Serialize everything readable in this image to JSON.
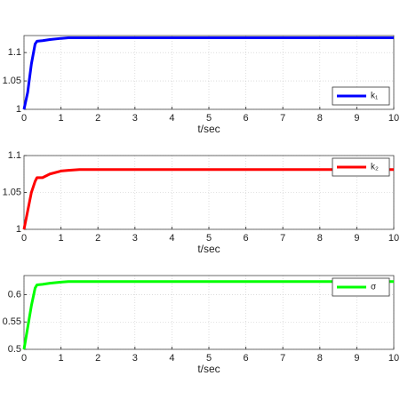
{
  "chart_data": [
    {
      "type": "line",
      "xlabel": "t/sec",
      "x": [
        0,
        0.1,
        0.2,
        0.3,
        0.35,
        0.5,
        0.7,
        1,
        1.2,
        1.5,
        2,
        3,
        4,
        5,
        6,
        7,
        8,
        9,
        10
      ],
      "series": [
        {
          "name": "k₁",
          "color": "#0000ff",
          "values": [
            1,
            1.03,
            1.08,
            1.115,
            1.12,
            1.121,
            1.123,
            1.125,
            1.126,
            1.126,
            1.126,
            1.126,
            1.126,
            1.126,
            1.126,
            1.126,
            1.126,
            1.126,
            1.126
          ]
        }
      ],
      "xlim": [
        0,
        10
      ],
      "xticks": [
        0,
        1,
        2,
        3,
        4,
        5,
        6,
        7,
        8,
        9,
        10
      ],
      "ylim": [
        1,
        1.13
      ],
      "yticks": [
        1,
        1.05,
        1.1
      ],
      "grid": true,
      "legend": "lower right"
    },
    {
      "type": "line",
      "xlabel": "t/sec",
      "x": [
        0,
        0.1,
        0.2,
        0.3,
        0.35,
        0.5,
        0.7,
        1,
        1.2,
        1.5,
        2,
        3,
        4,
        5,
        6,
        7,
        8,
        9,
        10
      ],
      "series": [
        {
          "name": "k₂",
          "color": "#ff0000",
          "values": [
            1,
            1.025,
            1.05,
            1.065,
            1.07,
            1.07,
            1.075,
            1.079,
            1.08,
            1.081,
            1.081,
            1.081,
            1.081,
            1.081,
            1.081,
            1.081,
            1.081,
            1.081,
            1.081
          ]
        }
      ],
      "xlim": [
        0,
        10
      ],
      "xticks": [
        0,
        1,
        2,
        3,
        4,
        5,
        6,
        7,
        8,
        9,
        10
      ],
      "ylim": [
        1,
        1.1
      ],
      "yticks": [
        1,
        1.05,
        1.1
      ],
      "grid": true,
      "legend": "upper right"
    },
    {
      "type": "line",
      "xlabel": "t/sec",
      "x": [
        0,
        0.1,
        0.2,
        0.3,
        0.35,
        0.5,
        0.7,
        1,
        1.2,
        1.5,
        2,
        3,
        4,
        5,
        6,
        7,
        8,
        9,
        10
      ],
      "series": [
        {
          "name": "σ",
          "color": "#00ff00",
          "values": [
            0.5,
            0.54,
            0.58,
            0.612,
            0.618,
            0.619,
            0.621,
            0.623,
            0.624,
            0.624,
            0.624,
            0.624,
            0.624,
            0.624,
            0.624,
            0.624,
            0.624,
            0.624,
            0.624
          ]
        }
      ],
      "xlim": [
        0,
        10
      ],
      "xticks": [
        0,
        1,
        2,
        3,
        4,
        5,
        6,
        7,
        8,
        9,
        10
      ],
      "ylim": [
        0.5,
        0.635
      ],
      "yticks": [
        0.5,
        0.55,
        0.6
      ],
      "grid": true,
      "legend": "upper right"
    }
  ]
}
